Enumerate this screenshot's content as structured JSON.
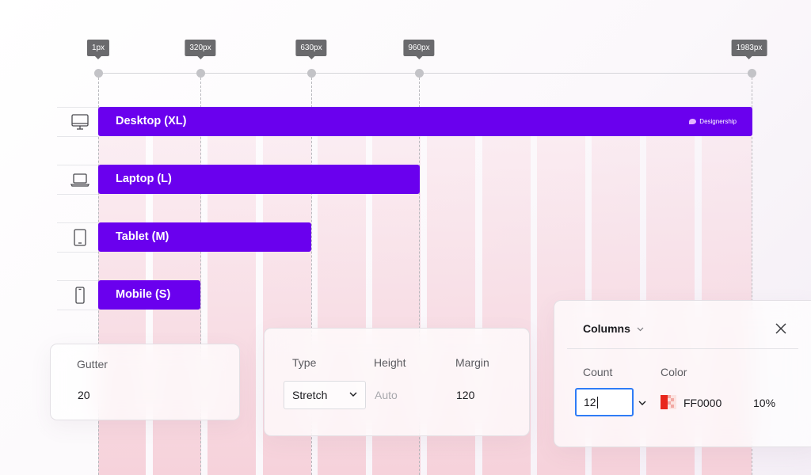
{
  "ruler": {
    "markers": [
      "1px",
      "320px",
      "630px",
      "960px",
      "1983px"
    ]
  },
  "breakpoints": [
    {
      "label": "Desktop (XL)",
      "icon": "monitor-icon"
    },
    {
      "label": "Laptop (L)",
      "icon": "laptop-icon"
    },
    {
      "label": "Tablet (M)",
      "icon": "tablet-icon"
    },
    {
      "label": "Mobile (S)",
      "icon": "mobile-icon"
    }
  ],
  "brand": "Designership",
  "gutter_panel": {
    "label": "Gutter",
    "value": "20"
  },
  "layout_panel": {
    "type_label": "Type",
    "type_value": "Stretch",
    "height_label": "Height",
    "height_value": "Auto",
    "margin_label": "Margin",
    "margin_value": "120"
  },
  "columns_panel": {
    "title": "Columns",
    "count_label": "Count",
    "count_value": "12",
    "color_label": "Color",
    "color_value": "FF0000",
    "opacity": "10%"
  },
  "colors": {
    "accent": "#6a00ee",
    "focus": "#2f7cf6",
    "grid": "#FF0000"
  }
}
